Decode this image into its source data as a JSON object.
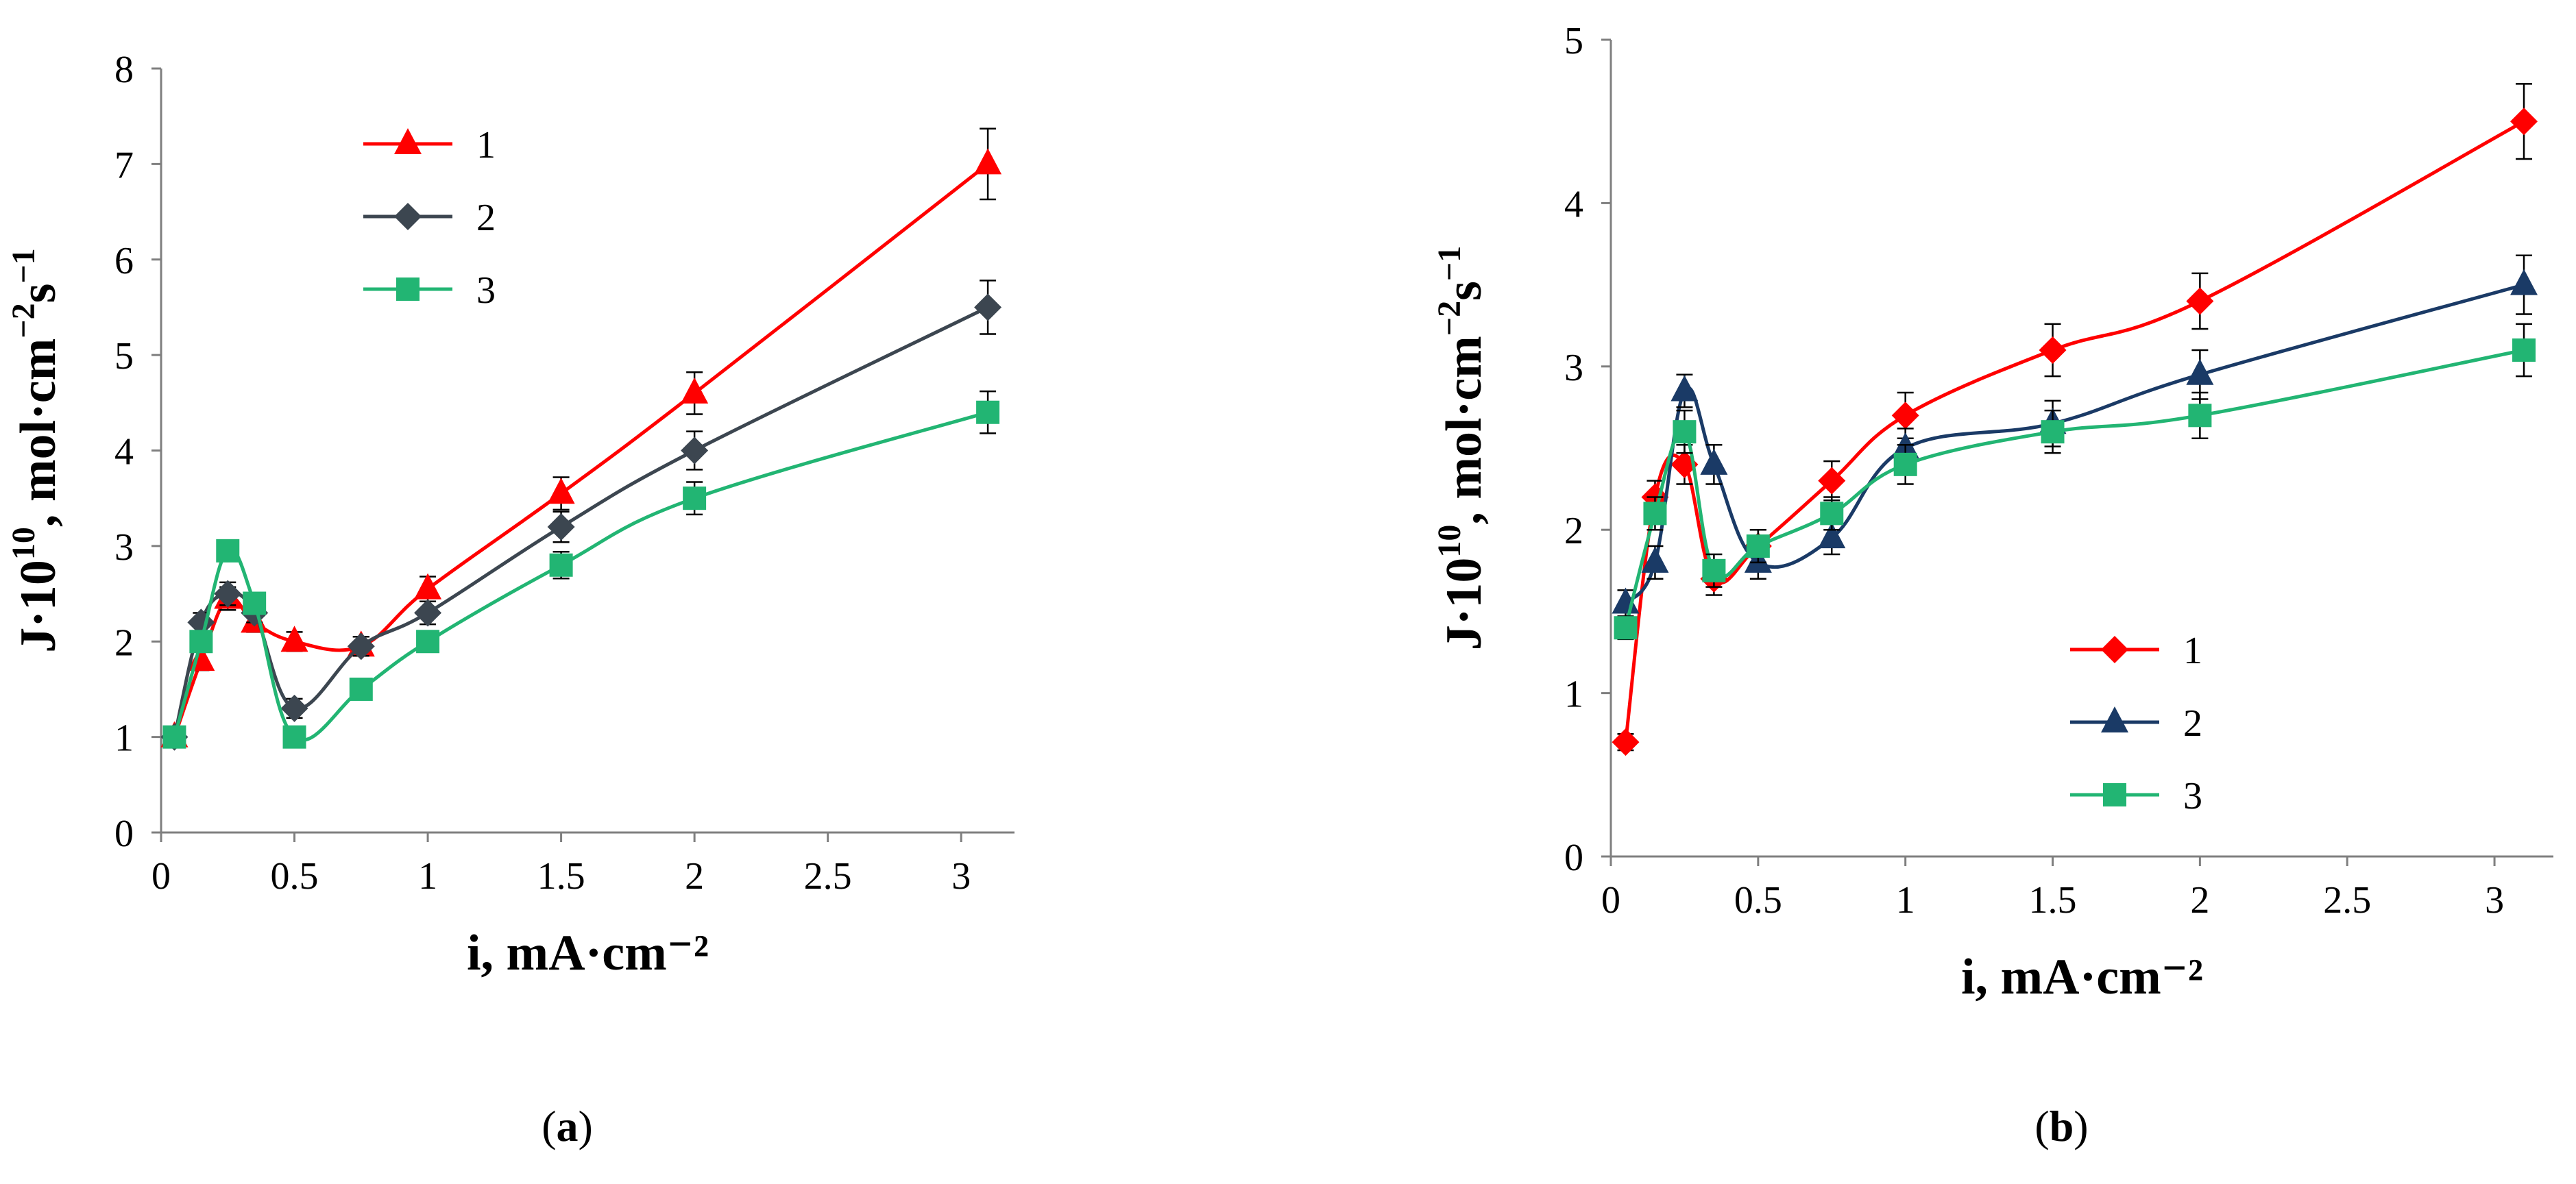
{
  "chart_data": [
    {
      "type": "line",
      "panel": "a",
      "caption": "(a)",
      "caption_letter": "a",
      "xlabel": "i, mA·cm⁻²",
      "ylabel_main": "J·10",
      "ylabel_exp": "10",
      "ylabel_unit": ", mol·cm",
      "ylabel_unit_exp1": "−2",
      "ylabel_unit_s": "s",
      "ylabel_unit_exp2": "−1",
      "xlim": [
        0,
        3.2
      ],
      "ylim": [
        0,
        8
      ],
      "xticks": [
        0,
        0.5,
        1,
        1.5,
        2,
        2.5,
        3
      ],
      "xtick_labels": [
        "0",
        "0.5",
        "1",
        "1.5",
        "2",
        "2.5",
        "3"
      ],
      "yticks": [
        0,
        1,
        2,
        3,
        4,
        5,
        6,
        7,
        8
      ],
      "ytick_labels": [
        "0",
        "1",
        "2",
        "3",
        "4",
        "5",
        "6",
        "7",
        "8"
      ],
      "grid": false,
      "legend_position": "top-left",
      "series": [
        {
          "name": "1",
          "color": "#ff0000",
          "marker": "triangle",
          "x": [
            0.05,
            0.15,
            0.25,
            0.35,
            0.5,
            0.75,
            1,
            1.5,
            2,
            3.1
          ],
          "y": [
            1.0,
            1.8,
            2.45,
            2.2,
            2.0,
            1.95,
            2.55,
            3.55,
            4.6,
            7.0
          ],
          "err": [
            0.08,
            0.1,
            0.12,
            0.1,
            0.1,
            0.1,
            0.13,
            0.17,
            0.22,
            0.37
          ]
        },
        {
          "name": "2",
          "color": "#3c4650",
          "marker": "diamond",
          "x": [
            0.05,
            0.15,
            0.25,
            0.35,
            0.5,
            0.75,
            1,
            1.5,
            2,
            3.1
          ],
          "y": [
            1.0,
            2.2,
            2.5,
            2.3,
            1.3,
            1.95,
            2.3,
            3.2,
            4.0,
            5.5
          ],
          "err": [
            0.08,
            0.1,
            0.12,
            0.1,
            0.1,
            0.1,
            0.12,
            0.16,
            0.2,
            0.28
          ]
        },
        {
          "name": "3",
          "color": "#22b573",
          "marker": "square",
          "x": [
            0.05,
            0.15,
            0.25,
            0.35,
            0.5,
            0.75,
            1,
            1.5,
            2,
            3.1
          ],
          "y": [
            1.0,
            2.0,
            2.95,
            2.4,
            1.0,
            1.5,
            2.0,
            2.8,
            3.5,
            4.4
          ],
          "err": [
            0.08,
            0.1,
            0.1,
            0.1,
            0.08,
            0.08,
            0.1,
            0.14,
            0.17,
            0.22
          ]
        }
      ]
    },
    {
      "type": "line",
      "panel": "b",
      "caption": "(b)",
      "caption_letter": "b",
      "xlabel": "i, mA·cm⁻²",
      "ylabel_main": "J·10",
      "ylabel_exp": "10",
      "ylabel_unit": ", mol·cm",
      "ylabel_unit_exp1": "−2",
      "ylabel_unit_s": "s",
      "ylabel_unit_exp2": "−1",
      "xlim": [
        0,
        3.2
      ],
      "ylim": [
        0,
        5
      ],
      "xticks": [
        0,
        0.5,
        1,
        1.5,
        2,
        2.5,
        3
      ],
      "xtick_labels": [
        "0",
        "0.5",
        "1",
        "1.5",
        "2",
        "2.5",
        "3"
      ],
      "yticks": [
        0,
        1,
        2,
        3,
        4,
        5
      ],
      "ytick_labels": [
        "0",
        "1",
        "2",
        "3",
        "4",
        "5"
      ],
      "grid": false,
      "legend_position": "bottom-right",
      "series": [
        {
          "name": "1",
          "color": "#ff0000",
          "marker": "diamond",
          "x": [
            0.05,
            0.15,
            0.25,
            0.35,
            0.5,
            0.75,
            1,
            1.5,
            2,
            3.1
          ],
          "y": [
            0.7,
            2.2,
            2.4,
            1.7,
            1.9,
            2.3,
            2.7,
            3.1,
            3.4,
            4.5
          ],
          "err": [
            0.05,
            0.1,
            0.12,
            0.1,
            0.1,
            0.12,
            0.14,
            0.16,
            0.17,
            0.23
          ]
        },
        {
          "name": "2",
          "color": "#1a3a66",
          "marker": "triangle",
          "x": [
            0.05,
            0.15,
            0.25,
            0.35,
            0.5,
            0.75,
            1,
            1.5,
            2,
            3.1
          ],
          "y": [
            1.55,
            1.8,
            2.85,
            2.4,
            1.8,
            1.95,
            2.5,
            2.65,
            2.95,
            3.5
          ],
          "err": [
            0.08,
            0.1,
            0.1,
            0.12,
            0.1,
            0.1,
            0.12,
            0.14,
            0.15,
            0.18
          ]
        },
        {
          "name": "3",
          "color": "#22b573",
          "marker": "square",
          "x": [
            0.05,
            0.15,
            0.25,
            0.35,
            0.5,
            0.75,
            1,
            1.5,
            2,
            3.1
          ],
          "y": [
            1.4,
            2.1,
            2.6,
            1.75,
            1.9,
            2.1,
            2.4,
            2.6,
            2.7,
            3.1
          ],
          "err": [
            0.07,
            0.1,
            0.13,
            0.1,
            0.1,
            0.1,
            0.12,
            0.13,
            0.14,
            0.16
          ]
        }
      ]
    }
  ]
}
